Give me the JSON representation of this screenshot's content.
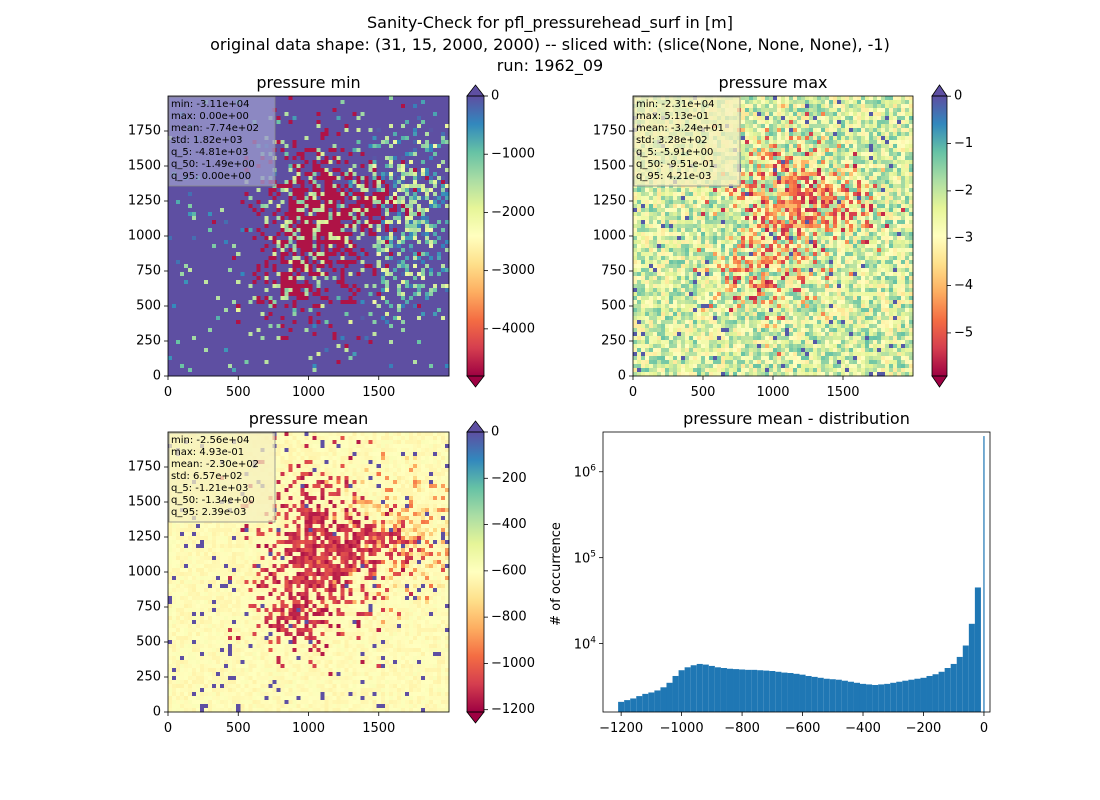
{
  "figure": {
    "title_lines": [
      "Sanity-Check for pfl_pressurehead_surf in [m]",
      "original data shape: (31, 15, 2000, 2000) -- sliced with: (slice(None, None, None), -1)",
      "run: 1962_09"
    ]
  },
  "chart_data": [
    {
      "type": "heatmap",
      "title": "pressure min",
      "colormap": "Spectral",
      "xlim": [
        0,
        2000
      ],
      "ylim": [
        0,
        2000
      ],
      "xticks": [
        0,
        500,
        1000,
        1500
      ],
      "yticks": [
        0,
        250,
        500,
        750,
        1000,
        1250,
        1500,
        1750
      ],
      "colorbar": {
        "ticks": [
          0,
          -1000,
          -2000,
          -3000,
          -4000
        ],
        "range": [
          -4810,
          0
        ],
        "extend": "both"
      },
      "stats": [
        "min: -3.11e+04",
        "max: 0.00e+00",
        "mean: -7.74e+02",
        "std: 1.82e+03",
        "q_5: -4.81e+03",
        "q_50: -1.49e+00",
        "q_95: 0.00e+00"
      ],
      "stats_box_color": "#9c9bcc"
    },
    {
      "type": "heatmap",
      "title": "pressure max",
      "colormap": "Spectral",
      "xlim": [
        0,
        2000
      ],
      "ylim": [
        0,
        2000
      ],
      "xticks": [
        0,
        500,
        1000,
        1500
      ],
      "yticks": [
        0,
        250,
        500,
        750,
        1000,
        1250,
        1500,
        1750
      ],
      "colorbar": {
        "ticks": [
          0,
          -1,
          -2,
          -3,
          -4,
          -5
        ],
        "range": [
          -5.91,
          0.00421
        ],
        "extend": "both"
      },
      "stats": [
        "min: -2.31e+04",
        "max: 5.13e-01",
        "mean: -3.24e+01",
        "std: 3.28e+02",
        "q_5: -5.91e+00",
        "q_50: -9.51e-01",
        "q_95: 4.21e-03"
      ],
      "stats_box_color": "#f6f0bf"
    },
    {
      "type": "heatmap",
      "title": "pressure mean",
      "colormap": "Spectral",
      "xlim": [
        0,
        2000
      ],
      "ylim": [
        0,
        2000
      ],
      "xticks": [
        0,
        500,
        1000,
        1500
      ],
      "yticks": [
        0,
        250,
        500,
        750,
        1000,
        1250,
        1500,
        1750
      ],
      "colorbar": {
        "ticks": [
          0,
          -200,
          -400,
          -600,
          -800,
          -1000,
          -1200
        ],
        "range": [
          -1210,
          0.00239
        ],
        "extend": "both"
      },
      "stats": [
        "min: -2.56e+04",
        "max: 4.93e-01",
        "mean: -2.30e+02",
        "std: 6.57e+02",
        "q_5: -1.21e+03",
        "q_50: -1.34e+00",
        "q_95: 2.39e-03"
      ],
      "stats_box_color": "#f6f0bf"
    },
    {
      "type": "bar",
      "title": "pressure mean - distribution",
      "xlabel": "",
      "ylabel": "# of occurrence",
      "yscale": "log",
      "xlim": [
        -1260,
        20
      ],
      "ylim": [
        1600,
        2900000
      ],
      "xticks": [
        -1200,
        -1000,
        -800,
        -600,
        -400,
        -200,
        0
      ],
      "yticks": [
        10000,
        100000,
        1000000
      ],
      "ytick_labels": [
        "10^4",
        "10^5",
        "10^6"
      ],
      "bar_color": "#1f77b4",
      "bins": [
        {
          "x": -1200,
          "y": 2100
        },
        {
          "x": -1180,
          "y": 2200
        },
        {
          "x": -1160,
          "y": 2300
        },
        {
          "x": -1140,
          "y": 2450
        },
        {
          "x": -1120,
          "y": 2600
        },
        {
          "x": -1100,
          "y": 2700
        },
        {
          "x": -1080,
          "y": 2850
        },
        {
          "x": -1060,
          "y": 3100
        },
        {
          "x": -1040,
          "y": 3500
        },
        {
          "x": -1020,
          "y": 4200
        },
        {
          "x": -1000,
          "y": 4900
        },
        {
          "x": -980,
          "y": 5300
        },
        {
          "x": -960,
          "y": 5600
        },
        {
          "x": -940,
          "y": 5800
        },
        {
          "x": -920,
          "y": 5700
        },
        {
          "x": -900,
          "y": 5500
        },
        {
          "x": -880,
          "y": 5300
        },
        {
          "x": -860,
          "y": 5200
        },
        {
          "x": -840,
          "y": 5100
        },
        {
          "x": -820,
          "y": 5050
        },
        {
          "x": -800,
          "y": 5000
        },
        {
          "x": -780,
          "y": 4950
        },
        {
          "x": -760,
          "y": 4950
        },
        {
          "x": -740,
          "y": 4900
        },
        {
          "x": -720,
          "y": 4850
        },
        {
          "x": -700,
          "y": 4800
        },
        {
          "x": -680,
          "y": 4700
        },
        {
          "x": -660,
          "y": 4600
        },
        {
          "x": -640,
          "y": 4550
        },
        {
          "x": -620,
          "y": 4450
        },
        {
          "x": -600,
          "y": 4350
        },
        {
          "x": -580,
          "y": 4200
        },
        {
          "x": -560,
          "y": 4100
        },
        {
          "x": -540,
          "y": 4000
        },
        {
          "x": -520,
          "y": 3900
        },
        {
          "x": -500,
          "y": 3850
        },
        {
          "x": -480,
          "y": 3800
        },
        {
          "x": -460,
          "y": 3700
        },
        {
          "x": -440,
          "y": 3600
        },
        {
          "x": -420,
          "y": 3500
        },
        {
          "x": -400,
          "y": 3400
        },
        {
          "x": -380,
          "y": 3350
        },
        {
          "x": -360,
          "y": 3300
        },
        {
          "x": -340,
          "y": 3350
        },
        {
          "x": -320,
          "y": 3400
        },
        {
          "x": -300,
          "y": 3500
        },
        {
          "x": -280,
          "y": 3600
        },
        {
          "x": -260,
          "y": 3700
        },
        {
          "x": -240,
          "y": 3800
        },
        {
          "x": -220,
          "y": 3900
        },
        {
          "x": -200,
          "y": 4000
        },
        {
          "x": -180,
          "y": 4200
        },
        {
          "x": -160,
          "y": 4400
        },
        {
          "x": -140,
          "y": 4700
        },
        {
          "x": -120,
          "y": 5200
        },
        {
          "x": -100,
          "y": 5800
        },
        {
          "x": -80,
          "y": 7000
        },
        {
          "x": -60,
          "y": 9500
        },
        {
          "x": -40,
          "y": 17000
        },
        {
          "x": -20,
          "y": 45000
        },
        {
          "x": 0,
          "y": 2600000
        }
      ]
    }
  ]
}
